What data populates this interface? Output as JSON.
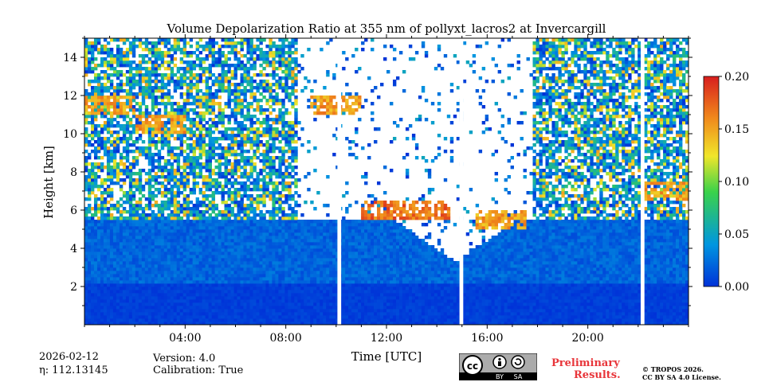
{
  "chart_data": {
    "type": "heatmap",
    "title": "Volume Depolarization Ratio at 355 nm of pollyxt_lacros2 at Invercargill",
    "xlabel": "Time [UTC]",
    "ylabel": "Height [km]",
    "xlim": [
      0,
      24
    ],
    "ylim": [
      0,
      15
    ],
    "x_ticks": [
      4,
      8,
      12,
      16,
      20
    ],
    "x_tick_labels": [
      "04:00",
      "08:00",
      "12:00",
      "16:00",
      "20:00"
    ],
    "y_ticks": [
      2,
      4,
      6,
      8,
      10,
      12,
      14
    ],
    "y_tick_labels": [
      "2",
      "4",
      "6",
      "8",
      "10",
      "12",
      "14"
    ],
    "colorbar": {
      "range": [
        0.0,
        0.2
      ],
      "ticks": [
        "0.00",
        "0.05",
        "0.10",
        "0.15",
        "0.20"
      ],
      "colors": [
        "#0032d8",
        "#0096e0",
        "#3ad24a",
        "#f0e62a",
        "#f08a1c",
        "#d81e1e"
      ]
    },
    "data_gaps_utc": [
      [
        10.05,
        10.2
      ],
      [
        14.9,
        15.05
      ],
      [
        22.1,
        22.25
      ]
    ],
    "cloud_layers": [
      {
        "time_start": 0.0,
        "time_end": 2.0,
        "height_km": 11.5,
        "value": 0.15
      },
      {
        "time_start": 2.0,
        "time_end": 4.0,
        "height_km": 10.5,
        "value": 0.15
      },
      {
        "time_start": 9.0,
        "time_end": 11.0,
        "height_km": 11.5,
        "value": 0.15
      },
      {
        "time_start": 11.0,
        "time_end": 14.5,
        "height_km": 6.0,
        "value": 0.17
      },
      {
        "time_start": 15.5,
        "time_end": 17.5,
        "height_km": 5.5,
        "value": 0.15
      },
      {
        "time_start": 22.2,
        "time_end": 24.0,
        "height_km": 7.0,
        "value": 0.15
      }
    ],
    "boundary_layer_top_km": 5.5,
    "low_signal_clear_region_utc": [
      12.0,
      17.5
    ]
  },
  "footer": {
    "date": "2026-02-12",
    "eta": "η: 112.13145",
    "version": "Version: 4.0",
    "calibration": "Calibration: True",
    "preliminary_line1": "Preliminary",
    "preliminary_line2": "Results.",
    "copyright_line1": "© TROPOS 2026.",
    "copyright_line2": "CC BY SA 4.0 License.",
    "license_badge": [
      "cc",
      "BY",
      "SA"
    ]
  }
}
